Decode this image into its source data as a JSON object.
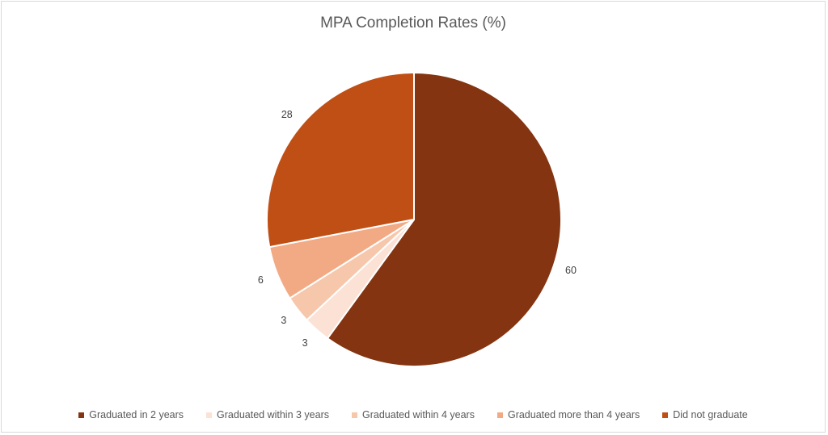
{
  "chart_data": {
    "type": "pie",
    "title": "MPA Completion Rates (%)",
    "categories": [
      "Graduated in 2 years",
      "Graduated within 3 years",
      "Graduated within 4 years",
      "Graduated more than 4 years",
      "Did not graduate"
    ],
    "values": [
      60,
      3,
      3,
      6,
      28
    ],
    "colors": [
      "#843410",
      "#FBE2D5",
      "#F7C7AC",
      "#F2AA84",
      "#C04F15"
    ],
    "data_labels": [
      "60",
      "3",
      "3",
      "6",
      "28"
    ],
    "legend_position": "bottom"
  }
}
